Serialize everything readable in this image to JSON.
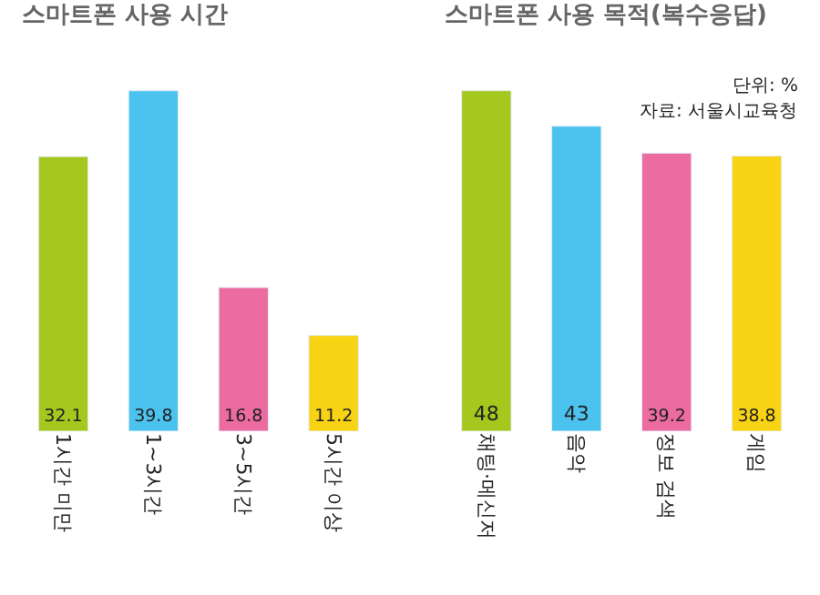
{
  "chart_data": [
    {
      "type": "bar",
      "title": "스마트폰 사용 시간",
      "categories": [
        "1시간 미만",
        "1~3시간",
        "3~5시간",
        "5시간 이상"
      ],
      "values": [
        32.1,
        39.8,
        16.8,
        11.2
      ],
      "colors": [
        "#a4c81e",
        "#4cc3ef",
        "#ec6ba0",
        "#f7d313"
      ],
      "data_labels": true
    },
    {
      "type": "bar",
      "title": "스마트폰 사용 목적(복수응답)",
      "categories": [
        "채팅·메신저",
        "음악",
        "정보 검색",
        "게임"
      ],
      "values": [
        48,
        43,
        39.2,
        38.8
      ],
      "colors": [
        "#a4c81e",
        "#4cc3ef",
        "#ec6ba0",
        "#f7d313"
      ],
      "data_labels": true,
      "annotations": [
        "단위: %",
        "자료: 서울시교육청"
      ]
    }
  ]
}
